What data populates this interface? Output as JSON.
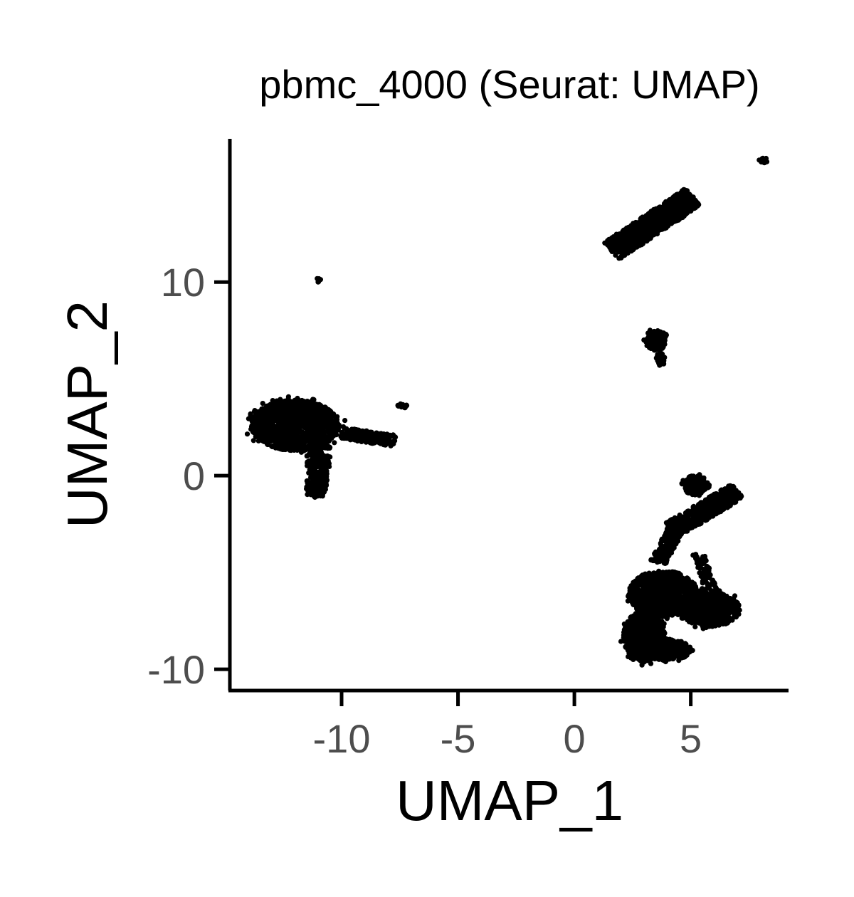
{
  "chart_data": {
    "type": "scatter",
    "title": "pbmc_4000 (Seurat: UMAP)",
    "xlabel": "UMAP_1",
    "ylabel": "UMAP_2",
    "xlim": [
      -14.8,
      9.2
    ],
    "ylim": [
      -11.1,
      17.4
    ],
    "xticks": [
      -10,
      -5,
      0,
      5
    ],
    "yticks": [
      -10,
      0,
      10
    ],
    "grid": false,
    "legend": "none",
    "point_color": "#000000",
    "clusters": [
      {
        "shape": "ellipse",
        "cx": -12.0,
        "cy": 2.6,
        "rx": 1.9,
        "ry": 1.3,
        "n": 1500
      },
      {
        "shape": "ellipse",
        "cx": -11.0,
        "cy": 0.8,
        "rx": 0.5,
        "ry": 1.2,
        "n": 200
      },
      {
        "shape": "ellipse",
        "cx": -11.1,
        "cy": -0.5,
        "rx": 0.45,
        "ry": 0.6,
        "n": 120
      },
      {
        "shape": "segment",
        "x1": -10.0,
        "y1": 2.2,
        "x2": -7.7,
        "y2": 1.8,
        "w": 0.3,
        "n": 220
      },
      {
        "shape": "ellipse",
        "cx": -7.4,
        "cy": 3.6,
        "rx": 0.2,
        "ry": 0.12,
        "n": 12
      },
      {
        "shape": "ellipse",
        "cx": -11.0,
        "cy": 10.1,
        "rx": 0.1,
        "ry": 0.1,
        "n": 6
      },
      {
        "shape": "segment",
        "x1": 1.6,
        "y1": 11.6,
        "x2": 5.1,
        "y2": 14.4,
        "w": 0.55,
        "n": 900
      },
      {
        "shape": "ellipse",
        "cx": 8.1,
        "cy": 16.3,
        "rx": 0.2,
        "ry": 0.15,
        "n": 15
      },
      {
        "shape": "ellipse",
        "cx": 3.5,
        "cy": 7.0,
        "rx": 0.45,
        "ry": 0.55,
        "n": 150
      },
      {
        "shape": "ellipse",
        "cx": 3.7,
        "cy": 6.0,
        "rx": 0.2,
        "ry": 0.35,
        "n": 40
      },
      {
        "shape": "ellipse",
        "cx": 3.0,
        "cy": -8.3,
        "rx": 0.9,
        "ry": 1.3,
        "n": 900
      },
      {
        "shape": "ellipse",
        "cx": 3.8,
        "cy": -6.1,
        "rx": 1.5,
        "ry": 1.2,
        "n": 900
      },
      {
        "shape": "ellipse",
        "cx": 5.8,
        "cy": -6.9,
        "rx": 1.3,
        "ry": 0.9,
        "n": 700
      },
      {
        "shape": "ellipse",
        "cx": 4.0,
        "cy": -9.0,
        "rx": 1.0,
        "ry": 0.55,
        "n": 300
      },
      {
        "shape": "segment",
        "x1": 4.2,
        "y1": -2.8,
        "x2": 7.0,
        "y2": -0.8,
        "w": 0.45,
        "n": 600
      },
      {
        "shape": "ellipse",
        "cx": 5.2,
        "cy": -0.5,
        "rx": 0.6,
        "ry": 0.5,
        "n": 160
      },
      {
        "shape": "segment",
        "x1": 3.6,
        "y1": -4.5,
        "x2": 4.5,
        "y2": -2.4,
        "w": 0.35,
        "n": 200
      },
      {
        "shape": "segment",
        "x1": 5.3,
        "y1": -4.0,
        "x2": 5.9,
        "y2": -6.0,
        "w": 0.25,
        "n": 80
      }
    ]
  }
}
